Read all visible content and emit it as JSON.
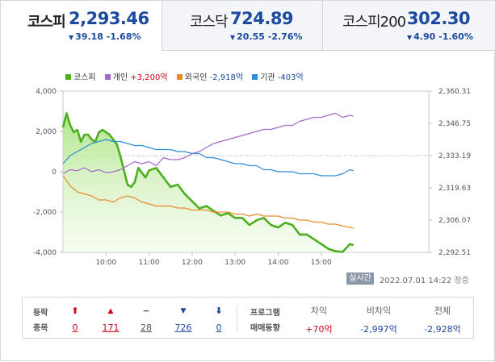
{
  "tabs": [
    {
      "name": "코스피",
      "value": "2,293.46",
      "change": "39.18 -1.68%",
      "active": true
    },
    {
      "name": "코스닥",
      "value": "724.89",
      "change": "20.55 -2.76%",
      "active": false
    },
    {
      "name": "코스피200",
      "value": "302.30",
      "change": "4.90 -1.60%",
      "active": false
    }
  ],
  "legend": {
    "kospi": "코스피",
    "individual_label": "개인",
    "individual_value": "+3,200억",
    "foreign_label": "외국인",
    "foreign_value": "-2,918억",
    "inst_label": "기관",
    "inst_value": "-403억"
  },
  "colors": {
    "kospi": "#4caf1f",
    "individual": "#a569c9",
    "foreign": "#e88a2a",
    "institution": "#2f8fd8",
    "rise": "#d0021b",
    "fall": "#1b4aa0"
  },
  "chart_data": {
    "type": "line",
    "x_ticks": [
      "10:00",
      "11:00",
      "12:00",
      "13:00",
      "14:00",
      "15:00"
    ],
    "left_axis": {
      "ticks": [
        "4,000",
        "2,000",
        "0",
        "-2,000",
        "-4,000"
      ],
      "range": [
        -4000,
        4000
      ]
    },
    "right_axis": {
      "ticks": [
        "2,360.31",
        "2,346.75",
        "2,333.19",
        "2,319.63",
        "2,306.07",
        "2,292.51"
      ],
      "range": [
        2292.51,
        2360.31
      ]
    },
    "reference_line": 2333.19,
    "x_range_min": [
      0,
      420
    ],
    "series": [
      {
        "name": "코스피",
        "axis": "right",
        "x": [
          0,
          5,
          10,
          15,
          20,
          25,
          30,
          35,
          40,
          45,
          50,
          55,
          60,
          65,
          70,
          75,
          80,
          85,
          90,
          95,
          100,
          105,
          110,
          115,
          120,
          130,
          140,
          150,
          160,
          170,
          180,
          190,
          200,
          210,
          220,
          230,
          240,
          250,
          260,
          270,
          280,
          290,
          300,
          310,
          320,
          330,
          340,
          350,
          360,
          370,
          380,
          390,
          400,
          405
        ],
        "y": [
          2345,
          2351,
          2346,
          2343,
          2344,
          2339,
          2342,
          2342,
          2340,
          2339,
          2343,
          2344,
          2343,
          2342,
          2340,
          2338,
          2333,
          2327,
          2321,
          2320,
          2322,
          2328,
          2326,
          2324,
          2327,
          2328,
          2324,
          2320,
          2321,
          2317,
          2314,
          2311,
          2312,
          2310,
          2308,
          2309,
          2307,
          2307,
          2304,
          2306,
          2307,
          2304,
          2303,
          2305,
          2304,
          2300,
          2300,
          2298,
          2296,
          2294,
          2293,
          2292.7,
          2296,
          2295.6
        ]
      },
      {
        "name": "개인",
        "axis": "left",
        "x": [
          0,
          10,
          20,
          30,
          40,
          50,
          60,
          70,
          80,
          90,
          100,
          110,
          120,
          130,
          140,
          150,
          160,
          170,
          180,
          190,
          200,
          210,
          220,
          230,
          240,
          250,
          260,
          270,
          280,
          290,
          300,
          310,
          320,
          330,
          340,
          350,
          360,
          370,
          380,
          390,
          400,
          405
        ],
        "y": [
          -100,
          100,
          50,
          200,
          0,
          100,
          -50,
          0,
          100,
          300,
          500,
          400,
          500,
          300,
          700,
          600,
          600,
          700,
          900,
          1000,
          1200,
          1400,
          1500,
          1600,
          1700,
          1800,
          1900,
          2000,
          2100,
          2100,
          2200,
          2300,
          2300,
          2500,
          2600,
          2700,
          2700,
          2800,
          2900,
          2700,
          2800,
          2750
        ]
      },
      {
        "name": "외국인",
        "axis": "left",
        "x": [
          0,
          10,
          20,
          30,
          40,
          50,
          60,
          70,
          80,
          90,
          100,
          110,
          120,
          130,
          140,
          150,
          160,
          170,
          180,
          190,
          200,
          210,
          220,
          230,
          240,
          250,
          260,
          270,
          280,
          290,
          300,
          310,
          320,
          330,
          340,
          350,
          360,
          370,
          380,
          390,
          400,
          405
        ],
        "y": [
          -200,
          -700,
          -1000,
          -1100,
          -1200,
          -1400,
          -1400,
          -1500,
          -1300,
          -1200,
          -1300,
          -1500,
          -1600,
          -1700,
          -1700,
          -1700,
          -1800,
          -1800,
          -1900,
          -1900,
          -1900,
          -2000,
          -2000,
          -2000,
          -2100,
          -2100,
          -2200,
          -2100,
          -2200,
          -2200,
          -2200,
          -2300,
          -2300,
          -2400,
          -2400,
          -2500,
          -2500,
          -2600,
          -2600,
          -2700,
          -2750,
          -2800
        ]
      },
      {
        "name": "기관",
        "axis": "left",
        "x": [
          0,
          10,
          20,
          30,
          40,
          50,
          60,
          70,
          80,
          90,
          100,
          110,
          120,
          130,
          140,
          150,
          160,
          170,
          180,
          190,
          200,
          210,
          220,
          230,
          240,
          250,
          260,
          270,
          280,
          290,
          300,
          310,
          320,
          330,
          340,
          350,
          360,
          370,
          380,
          390,
          400,
          405
        ],
        "y": [
          400,
          800,
          1000,
          1200,
          1400,
          1500,
          1600,
          1500,
          1500,
          1400,
          1300,
          1300,
          1200,
          1100,
          1100,
          1100,
          1000,
          1000,
          900,
          900,
          700,
          700,
          600,
          500,
          400,
          400,
          300,
          300,
          100,
          100,
          0,
          0,
          0,
          -100,
          -100,
          -100,
          -200,
          -200,
          -200,
          -100,
          100,
          50
        ]
      }
    ]
  },
  "status": {
    "badge": "실시간",
    "timestamp": "2022.07.01 14:22",
    "state": "장중"
  },
  "breadth": {
    "label_line1": "등락",
    "label_line2": "종목",
    "upper_limit": "0",
    "rise": "171",
    "flat": "28",
    "fall": "726",
    "lower_limit": "0"
  },
  "program": {
    "label_line1": "프로그램",
    "label_line2": "매매동향",
    "arbitrage_label": "차익",
    "arbitrage_value": "+70억",
    "non_arbitrage_label": "비차익",
    "non_arbitrage_value": "-2,997억",
    "total_label": "전체",
    "total_value": "-2,928억"
  }
}
